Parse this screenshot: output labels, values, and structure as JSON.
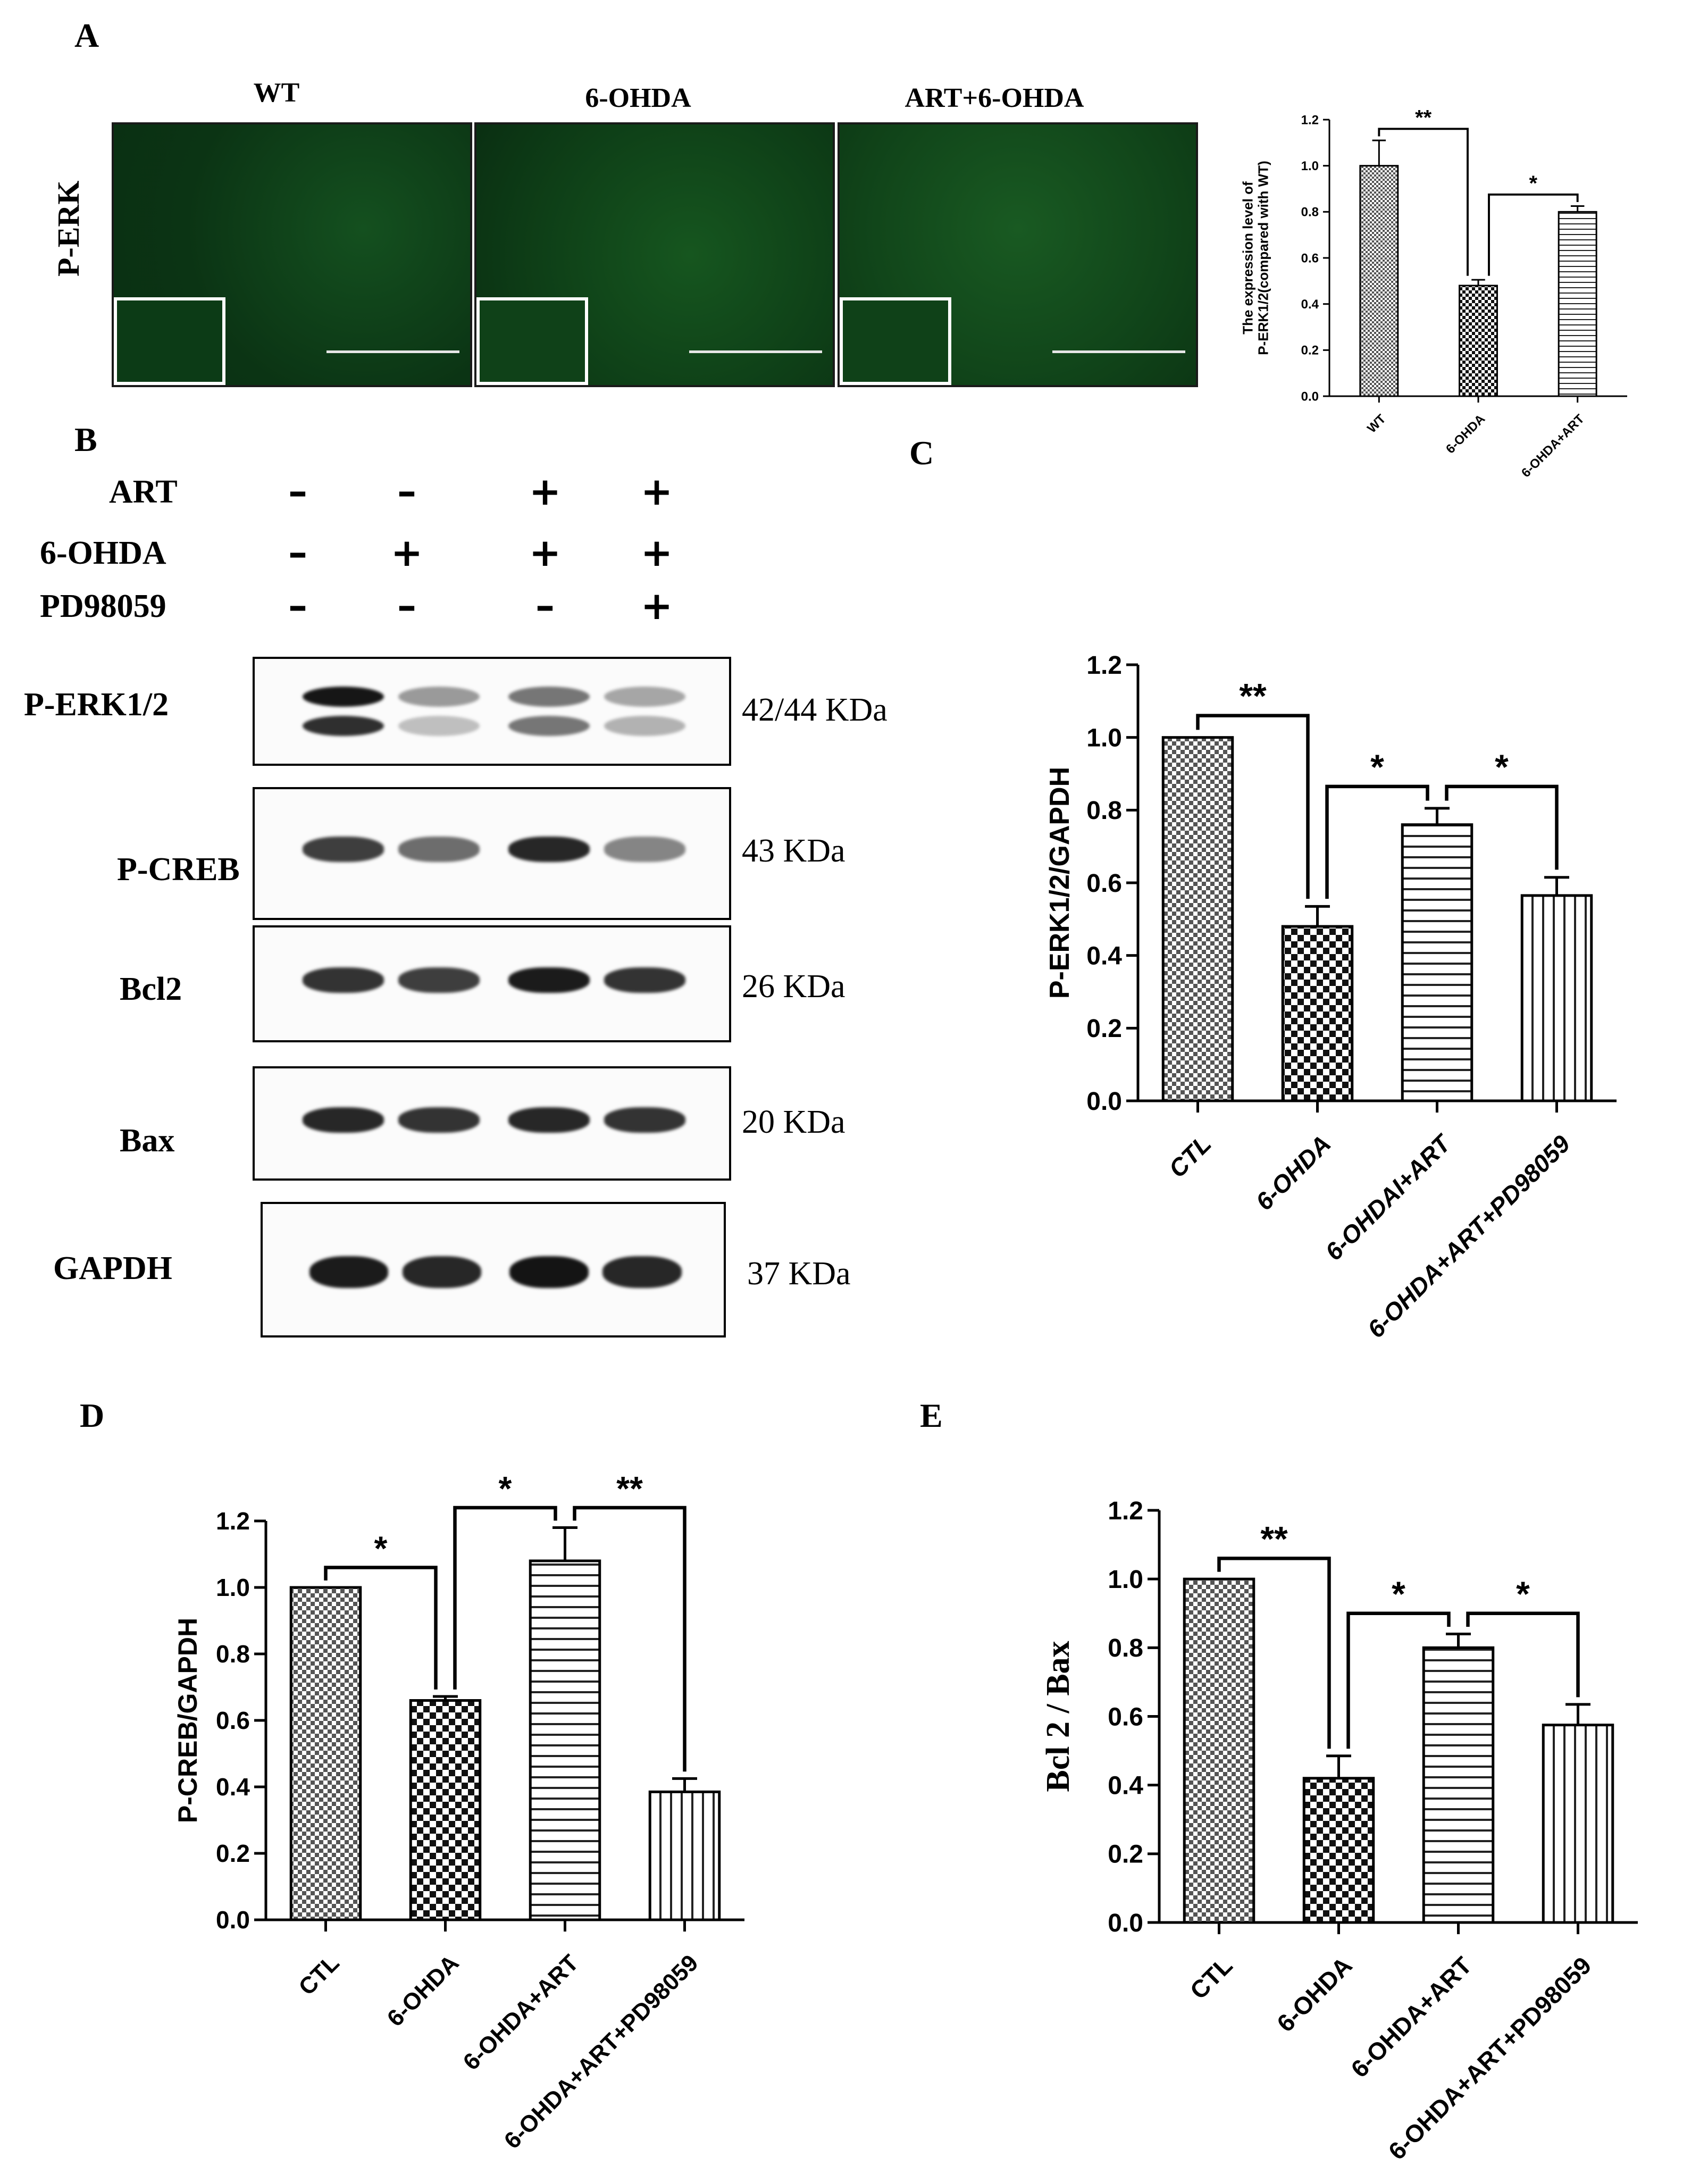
{
  "panel_letters": {
    "a": "A",
    "b": "B",
    "c": "C",
    "d": "D",
    "e": "E"
  },
  "panel_a": {
    "row_label": "P-ERK",
    "image_titles": [
      "WT",
      "6-OHDA",
      "ART+6-OHDA"
    ],
    "tissue_color": "#0d3b18"
  },
  "panel_b": {
    "treatments": [
      {
        "label": "ART",
        "symbols": [
          "-",
          "-",
          "+",
          "+"
        ]
      },
      {
        "label": "6-OHDA",
        "symbols": [
          "-",
          "+",
          "+",
          "+"
        ]
      },
      {
        "label": "PD98059",
        "symbols": [
          "-",
          "-",
          "-",
          "+"
        ]
      }
    ],
    "blots": [
      {
        "label": "P-ERK1/2",
        "size": "42/44 KDa"
      },
      {
        "label": "P-CREB",
        "size": "43 KDa"
      },
      {
        "label": "Bcl2",
        "size": "26 KDa"
      },
      {
        "label": "Bax",
        "size": "20 KDa"
      },
      {
        "label": "GAPDH",
        "size": "37 KDa"
      }
    ]
  },
  "chart_data": [
    {
      "id": "A",
      "type": "bar",
      "categories": [
        "WT",
        "6-OHDA",
        "6-OHDA+ART"
      ],
      "values": [
        1.0,
        0.48,
        0.8
      ],
      "errors": [
        0.11,
        0.025,
        0.025
      ],
      "ylabel_lines": [
        "The expression level of",
        "P-ERK1/2(compared with WT)"
      ],
      "xlabel": "",
      "ylim": [
        0,
        1.2
      ],
      "yticks": [
        "0.0",
        "0.2",
        "0.4",
        "0.6",
        "0.8",
        "1.0",
        "1.2"
      ],
      "patterns": [
        "checker",
        "checker-dense",
        "hlines"
      ],
      "significance": [
        {
          "from": 0,
          "to": 1,
          "label": "**"
        },
        {
          "from": 1,
          "to": 2,
          "label": "*"
        }
      ]
    },
    {
      "id": "C",
      "type": "bar",
      "categories": [
        "CTL",
        "6-OHDA",
        "6-OHDAI+ART",
        "6-OHDA+ART+PD98059"
      ],
      "values": [
        1.0,
        0.48,
        0.76,
        0.565
      ],
      "errors": [
        0.0,
        0.055,
        0.045,
        0.05
      ],
      "ylabel_lines": [
        "P-ERK1/2/GAPDH"
      ],
      "xlabel": "",
      "ylim": [
        0,
        1.2
      ],
      "yticks": [
        "0.0",
        "0.2",
        "0.4",
        "0.6",
        "0.8",
        "1.0",
        "1.2"
      ],
      "patterns": [
        "checker",
        "checker-dense",
        "hlines",
        "vlines"
      ],
      "significance": [
        {
          "from": 0,
          "to": 1,
          "label": "**"
        },
        {
          "from": 1,
          "to": 2,
          "label": "*"
        },
        {
          "from": 2,
          "to": 3,
          "label": "*"
        }
      ]
    },
    {
      "id": "D",
      "type": "bar",
      "categories": [
        "CTL",
        "6-OHDA",
        "6-OHDA+ART",
        "6-OHDA+ART+PD98059"
      ],
      "values": [
        1.0,
        0.66,
        1.08,
        0.385
      ],
      "errors": [
        0.0,
        0.012,
        0.1,
        0.04
      ],
      "ylabel_lines": [
        "P-CREB/GAPDH"
      ],
      "xlabel": "",
      "ylim": [
        0,
        1.2
      ],
      "yticks": [
        "0.0",
        "0.2",
        "0.4",
        "0.6",
        "0.8",
        "1.0",
        "1.2"
      ],
      "patterns": [
        "checker",
        "checker-dense",
        "hlines",
        "vlines"
      ],
      "significance": [
        {
          "from": 0,
          "to": 1,
          "label": "*"
        },
        {
          "from": 1,
          "to": 2,
          "label": "*"
        },
        {
          "from": 2,
          "to": 3,
          "label": "**"
        }
      ]
    },
    {
      "id": "E",
      "type": "bar",
      "categories": [
        "CTL",
        "6-OHDA",
        "6-OHDA+ART",
        "6-OHDA+ART+PD98059"
      ],
      "values": [
        1.0,
        0.42,
        0.8,
        0.575
      ],
      "errors": [
        0.0,
        0.065,
        0.04,
        0.06
      ],
      "ylabel_lines": [
        "Bcl 2 / Bax"
      ],
      "xlabel": "",
      "ylim": [
        0,
        1.2
      ],
      "yticks": [
        "0.0",
        "0.2",
        "0.4",
        "0.6",
        "0.8",
        "1.0",
        "1.2"
      ],
      "patterns": [
        "checker",
        "checker-dense",
        "hlines",
        "vlines"
      ],
      "significance": [
        {
          "from": 0,
          "to": 1,
          "label": "**"
        },
        {
          "from": 1,
          "to": 2,
          "label": "*"
        },
        {
          "from": 2,
          "to": 3,
          "label": "*"
        }
      ]
    }
  ]
}
